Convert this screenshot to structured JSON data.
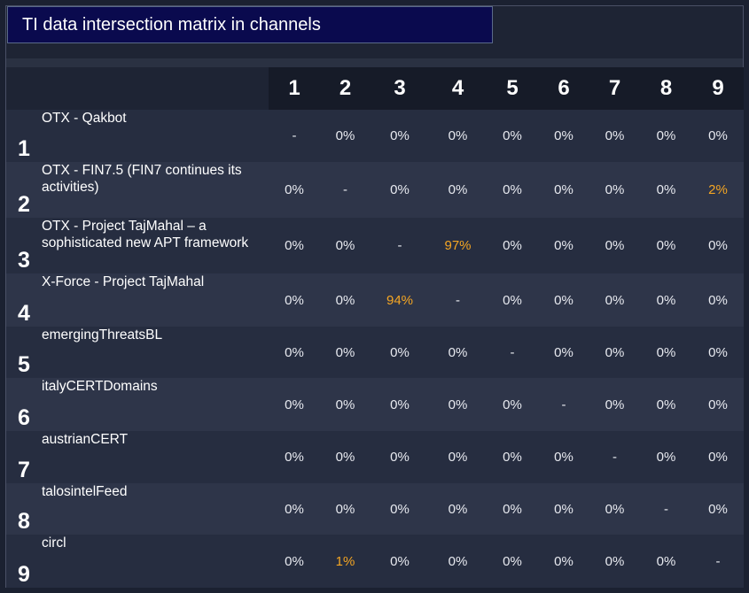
{
  "title": "TI data intersection matrix in channels",
  "colors": {
    "highlight": "#f5a623",
    "title_bg": "#0a0a4e"
  },
  "columns": [
    "1",
    "2",
    "3",
    "4",
    "5",
    "6",
    "7",
    "8",
    "9"
  ],
  "rows": [
    {
      "num": "1",
      "name": "OTX - Qakbot",
      "cells": [
        "-",
        "0%",
        "0%",
        "0%",
        "0%",
        "0%",
        "0%",
        "0%",
        "0%"
      ]
    },
    {
      "num": "2",
      "name": "OTX - FIN7.5 (FIN7 continues its activities)",
      "cells": [
        "0%",
        "-",
        "0%",
        "0%",
        "0%",
        "0%",
        "0%",
        "0%",
        "2%"
      ]
    },
    {
      "num": "3",
      "name": "OTX - Project TajMahal – a sophisticated new APT framework",
      "cells": [
        "0%",
        "0%",
        "-",
        "97%",
        "0%",
        "0%",
        "0%",
        "0%",
        "0%"
      ]
    },
    {
      "num": "4",
      "name": "X-Force - Project TajMahal",
      "cells": [
        "0%",
        "0%",
        "94%",
        "-",
        "0%",
        "0%",
        "0%",
        "0%",
        "0%"
      ]
    },
    {
      "num": "5",
      "name": "emergingThreatsBL",
      "cells": [
        "0%",
        "0%",
        "0%",
        "0%",
        "-",
        "0%",
        "0%",
        "0%",
        "0%"
      ]
    },
    {
      "num": "6",
      "name": "italyCERTDomains",
      "cells": [
        "0%",
        "0%",
        "0%",
        "0%",
        "0%",
        "-",
        "0%",
        "0%",
        "0%"
      ]
    },
    {
      "num": "7",
      "name": "austrianCERT",
      "cells": [
        "0%",
        "0%",
        "0%",
        "0%",
        "0%",
        "0%",
        "-",
        "0%",
        "0%"
      ]
    },
    {
      "num": "8",
      "name": "talosintelFeed",
      "cells": [
        "0%",
        "0%",
        "0%",
        "0%",
        "0%",
        "0%",
        "0%",
        "-",
        "0%"
      ]
    },
    {
      "num": "9",
      "name": "circl",
      "cells": [
        "0%",
        "1%",
        "0%",
        "0%",
        "0%",
        "0%",
        "0%",
        "0%",
        "-"
      ]
    }
  ],
  "highlighted": [
    [
      1,
      8
    ],
    [
      2,
      3
    ],
    [
      3,
      2
    ],
    [
      8,
      1
    ]
  ]
}
